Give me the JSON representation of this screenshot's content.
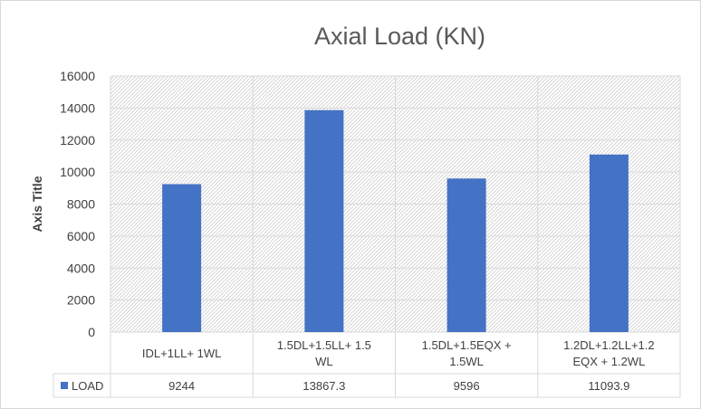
{
  "chart_data": {
    "type": "bar",
    "title": "Axial Load (KN)",
    "xlabel": "",
    "ylabel": "Axis Title",
    "ylim": [
      0,
      16000
    ],
    "yticks": [
      0,
      2000,
      4000,
      6000,
      8000,
      10000,
      12000,
      14000,
      16000
    ],
    "categories": [
      [
        "IDL+1LL+ 1WL"
      ],
      [
        "1.5DL+1.5LL+ 1.5",
        "WL"
      ],
      [
        "1.5DL+1.5EQX +",
        "1.5WL"
      ],
      [
        "1.2DL+1.2LL+1.2",
        "EQX + 1.2WL"
      ]
    ],
    "series": [
      {
        "name": "LOAD",
        "values": [
          9244,
          13867.3,
          9596,
          11093.9
        ],
        "labels": [
          "9244",
          "13867.3",
          "9596",
          "11093.9"
        ],
        "color": "#4472c4"
      }
    ],
    "grid": true,
    "legend": "data-table",
    "data_table": true
  }
}
